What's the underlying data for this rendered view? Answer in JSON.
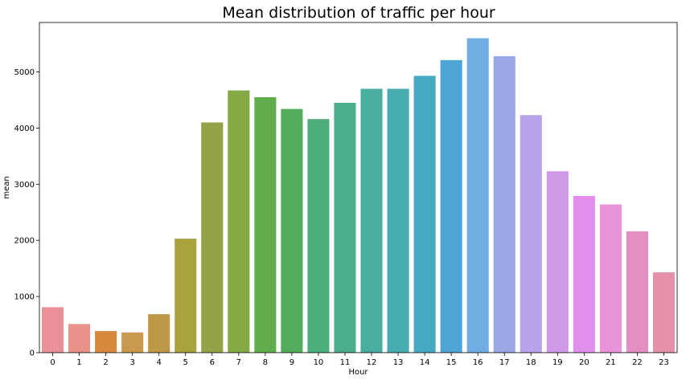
{
  "chart_data": {
    "type": "bar",
    "title": "Mean distribution of traffic per hour",
    "xlabel": "Hour",
    "ylabel": "mean",
    "categories": [
      "0",
      "1",
      "2",
      "3",
      "4",
      "5",
      "6",
      "7",
      "8",
      "9",
      "10",
      "11",
      "12",
      "13",
      "14",
      "15",
      "16",
      "17",
      "18",
      "19",
      "20",
      "21",
      "22",
      "23"
    ],
    "values": [
      810,
      510,
      385,
      360,
      685,
      2030,
      4100,
      4670,
      4550,
      4340,
      4160,
      4450,
      4700,
      4700,
      4930,
      5210,
      5600,
      5280,
      4230,
      3230,
      2790,
      2640,
      2160,
      1430
    ],
    "ylim": [
      0,
      5880
    ],
    "yticks": [
      0,
      1000,
      2000,
      3000,
      4000,
      5000
    ],
    "grid": false,
    "colors": [
      "#e99196",
      "#e8928a",
      "#d8893d",
      "#c89a4f",
      "#bd9846",
      "#aaa23f",
      "#96a248",
      "#84a945",
      "#61ac4c",
      "#51ad5c",
      "#4cae7c",
      "#4aae8e",
      "#47aea0",
      "#48adb0",
      "#47a9c1",
      "#4fa4d6",
      "#70ade2",
      "#9aa7e7",
      "#b8a2ea",
      "#d09ae9",
      "#e18eec",
      "#e893da",
      "#e38fc3",
      "#e591aa"
    ]
  }
}
